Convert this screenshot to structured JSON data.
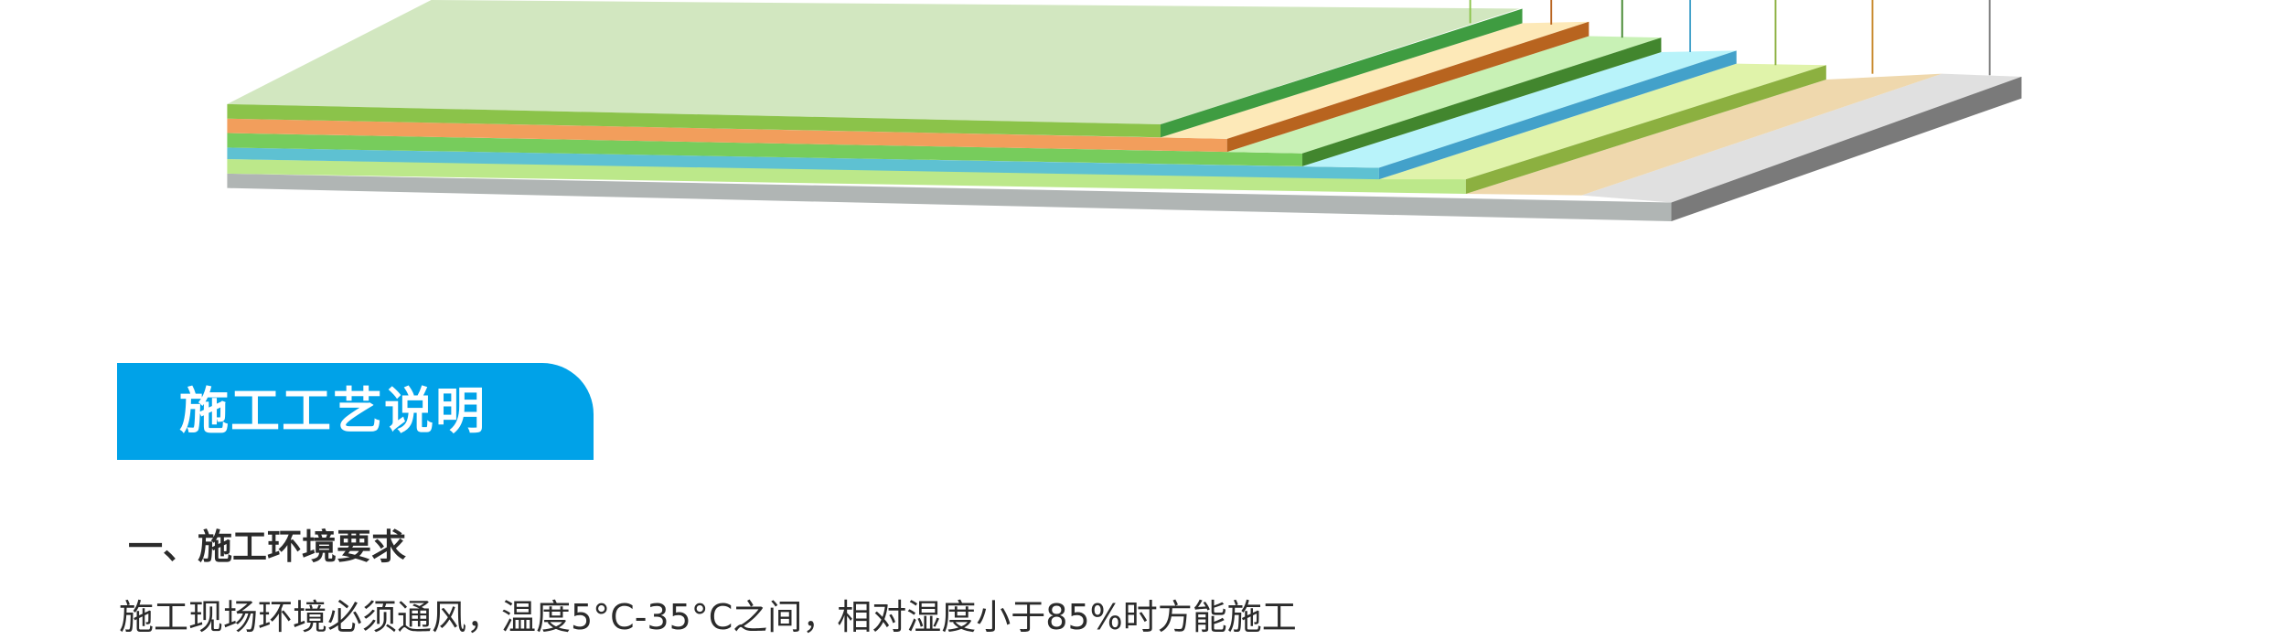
{
  "diagram": {
    "layer_colors": {
      "top_surface": "#d2e7c0",
      "layer1": "#8bc34a",
      "layer2": "#f29e5c",
      "layer3": "#77cc5c",
      "layer4": "#5ec1d2",
      "layer5": "#bce88a",
      "layer6": "#efd8ad",
      "base": "#b0b5b4"
    }
  },
  "section": {
    "tab_title": "施工工艺说明",
    "tab_color": "#00a2e8",
    "heading": "一、施工环境要求",
    "body": "施工现场环境必须通风，温度5°C-35°C之间，相对湿度小于85%时方能施工"
  }
}
